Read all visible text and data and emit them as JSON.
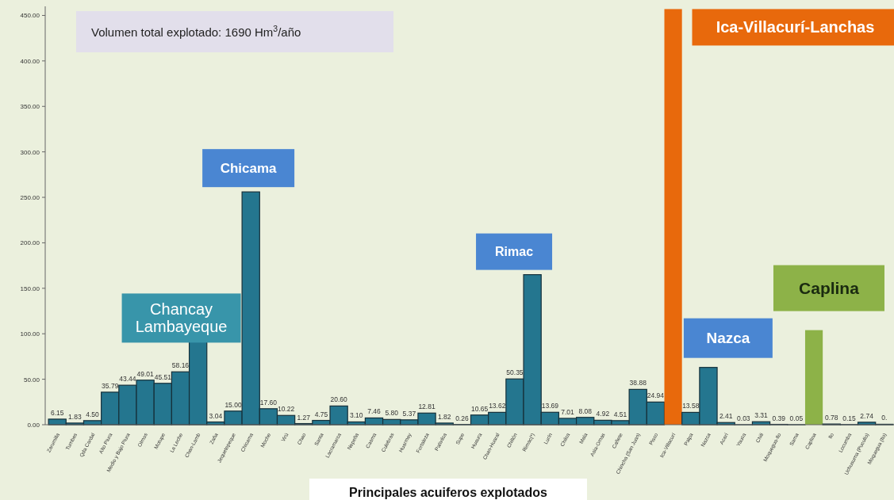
{
  "chart_data": {
    "type": "bar",
    "title": "Volumen total explotado: 1690 Hm$^{3}$/año",
    "xlabel": "Principales acuiferos explotados",
    "categories": [
      "Zarumilla",
      "Tumbes",
      "Qda Cardal",
      "Alto Piura",
      "Medio y Bajo Piura",
      "Olmos",
      "Motupe",
      "La Leche",
      "Chan-Lamb",
      "Zaña",
      "Jequetepeque",
      "Chicama",
      "Moche",
      "Virú",
      "Chao",
      "Santa",
      "Lacramarca",
      "Nepeña",
      "Casma",
      "Culebras",
      "Huarmey",
      "Fortaleza",
      "Pativilca",
      "Supe",
      "Huaura",
      "Chan-Huaral",
      "Chillón",
      "Rimac(*)",
      "Lurín",
      "Chilca",
      "Mala",
      "Asia-Omas",
      "Cañete",
      "Chincha (San Juan)",
      "Pisco",
      "Ica-Villacurí",
      "Palpa",
      "Nazca",
      "Acarí",
      "Yauca",
      "Chili",
      "Moquegua-Ilo",
      "Sama",
      "Caplina",
      "Ilo",
      "Locumba",
      "Uchusuma (Pucullo)",
      "Moquegua (Ilo)"
    ],
    "values": [
      6.15,
      1.83,
      4.5,
      35.79,
      43.44,
      49.01,
      45.51,
      58.16,
      92,
      3.04,
      15,
      256,
      17.6,
      10.22,
      1.27,
      4.75,
      20.6,
      3.1,
      7.46,
      5.8,
      5.37,
      12.81,
      1.82,
      0.26,
      10.65,
      13.62,
      50.35,
      165,
      13.69,
      7.01,
      8.08,
      4.92,
      4.51,
      38.88,
      24.94,
      457,
      13.58,
      63,
      2.41,
      0.03,
      3.31,
      0.39,
      0.05,
      104,
      0.78,
      0.15,
      2.74,
      0.5
    ],
    "value_labels": [
      "6.15",
      "1.83",
      "4.50",
      "35.79",
      "43.44",
      "49.01",
      "45.51",
      "58.16",
      null,
      "3.04",
      "15.00",
      null,
      "17.60",
      "10.22",
      "1.27",
      "4.75",
      "20.60",
      "3.10",
      "7.46",
      "5.80",
      "5.37",
      "12.81",
      "1.82",
      "0.26",
      "10.65",
      "13.62",
      "50.35",
      null,
      "13.69",
      "7.01",
      "8.08",
      "4.92",
      "4.51",
      "38.88",
      "24.94",
      null,
      "13.58",
      null,
      "2.41",
      "0.03",
      "3.31",
      "0.39",
      "0.05",
      null,
      "0.78",
      "0.15",
      "2.74",
      "0."
    ],
    "colors": [
      "#24768f",
      "#24768f",
      "#24768f",
      "#24768f",
      "#24768f",
      "#24768f",
      "#24768f",
      "#24768f",
      "#24768f",
      "#24768f",
      "#24768f",
      "#24768f",
      "#24768f",
      "#24768f",
      "#24768f",
      "#24768f",
      "#24768f",
      "#24768f",
      "#24768f",
      "#24768f",
      "#24768f",
      "#24768f",
      "#24768f",
      "#24768f",
      "#24768f",
      "#24768f",
      "#24768f",
      "#24768f",
      "#24768f",
      "#24768f",
      "#24768f",
      "#24768f",
      "#24768f",
      "#24768f",
      "#24768f",
      "#e8690c",
      "#24768f",
      "#24768f",
      "#24768f",
      "#24768f",
      "#24768f",
      "#24768f",
      "#24768f",
      "#8db248",
      "#24768f",
      "#24768f",
      "#24768f",
      "#24768f"
    ],
    "ylim": [
      0,
      460
    ],
    "yticks": [
      {
        "value": 0,
        "label": "0.00"
      },
      {
        "value": 50,
        "label": "50.00"
      },
      {
        "value": 100,
        "label": "100.00"
      },
      {
        "value": 150,
        "label": "150.00"
      },
      {
        "value": 200,
        "label": "200.00"
      },
      {
        "value": 250,
        "label": "250.00"
      },
      {
        "value": 300,
        "label": "300.00"
      },
      {
        "value": 350,
        "label": "350.00"
      },
      {
        "value": 400,
        "label": "400.00"
      },
      {
        "value": 450,
        "label": "450.00"
      }
    ],
    "annotations": [
      {
        "text": "Chancay\nLambayeque",
        "x": "Chan-Lamb",
        "y": 92
      },
      {
        "text": "Chicama",
        "x": "Chicama",
        "y": 256
      },
      {
        "text": "Rimac",
        "x": "Rimac(*)",
        "y": 165
      },
      {
        "text": "Ica-Villacurí-Lanchas",
        "x": "Ica-Villacurí",
        "y": 457
      },
      {
        "text": "Nazca",
        "x": "Nazca",
        "y": 63
      },
      {
        "text": "Caplina",
        "x": "Caplina",
        "y": 104
      }
    ]
  }
}
